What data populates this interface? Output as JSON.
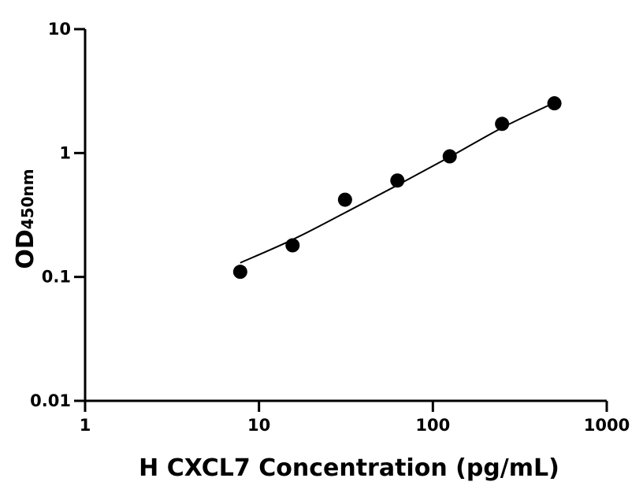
{
  "chart_data": {
    "type": "scatter",
    "title": "",
    "xlabel": "H CXCL7  Concentration (pg/mL)",
    "ylabel": {
      "main": "OD",
      "subscript": "450nm"
    },
    "x_scale": "log",
    "y_scale": "log",
    "xlim": [
      1,
      1000
    ],
    "ylim": [
      0.01,
      10
    ],
    "x_ticks": [
      "1",
      "10",
      "100",
      "1000"
    ],
    "y_ticks": [
      "0.01",
      "0.1",
      "1",
      "10"
    ],
    "grid": false,
    "legend": "none",
    "series": [
      {
        "points": [
          {
            "x": 7.8,
            "y": 0.11
          },
          {
            "x": 15.6,
            "y": 0.18
          },
          {
            "x": 31.25,
            "y": 0.42
          },
          {
            "x": 62.5,
            "y": 0.6
          },
          {
            "x": 125,
            "y": 0.94
          },
          {
            "x": 250,
            "y": 1.72
          },
          {
            "x": 500,
            "y": 2.52
          }
        ]
      }
    ],
    "fit_curve": [
      {
        "x": 7.8,
        "y": 0.13
      },
      {
        "x": 15.6,
        "y": 0.2
      },
      {
        "x": 31.25,
        "y": 0.33
      },
      {
        "x": 62.5,
        "y": 0.55
      },
      {
        "x": 125,
        "y": 0.93
      },
      {
        "x": 250,
        "y": 1.6
      },
      {
        "x": 500,
        "y": 2.55
      }
    ],
    "colors": {
      "marker": "#000000",
      "line": "#000000",
      "axis": "#000000"
    }
  }
}
